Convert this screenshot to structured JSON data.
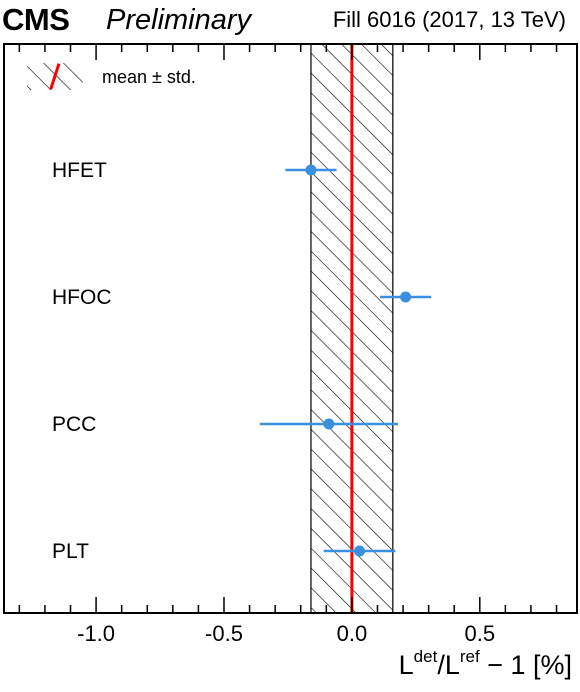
{
  "header": {
    "experiment": "CMS",
    "status": "Preliminary",
    "fill_info": "Fill 6016 (2017, 13 TeV)"
  },
  "colors": {
    "points": "#3b8fe0",
    "mean_line": "#ff0000",
    "hatch": "#000000"
  },
  "axis": {
    "x_title_main": "L",
    "x_title_sup1": "det",
    "x_title_mid": "/L",
    "x_title_sup2": "ref",
    "x_title_tail": " − 1 [%]"
  },
  "chart_data": {
    "type": "scatter",
    "orientation": "horizontal-errorbars",
    "categories": [
      "HFET",
      "HFOC",
      "PCC",
      "PLT"
    ],
    "values": [
      -0.16,
      0.21,
      -0.09,
      0.03
    ],
    "errors": [
      0.1,
      0.1,
      0.27,
      0.14
    ],
    "band": {
      "mean": 0.0,
      "std": 0.16,
      "label": "mean ± std."
    },
    "xlim": [
      -1.36,
      0.88
    ],
    "xticks": [
      -1.0,
      -0.5,
      0.0,
      0.5
    ],
    "xtick_labels": [
      "-1.0",
      "-0.5",
      "0.0",
      "0.5"
    ],
    "legend_position": "top-left",
    "grid": false
  }
}
